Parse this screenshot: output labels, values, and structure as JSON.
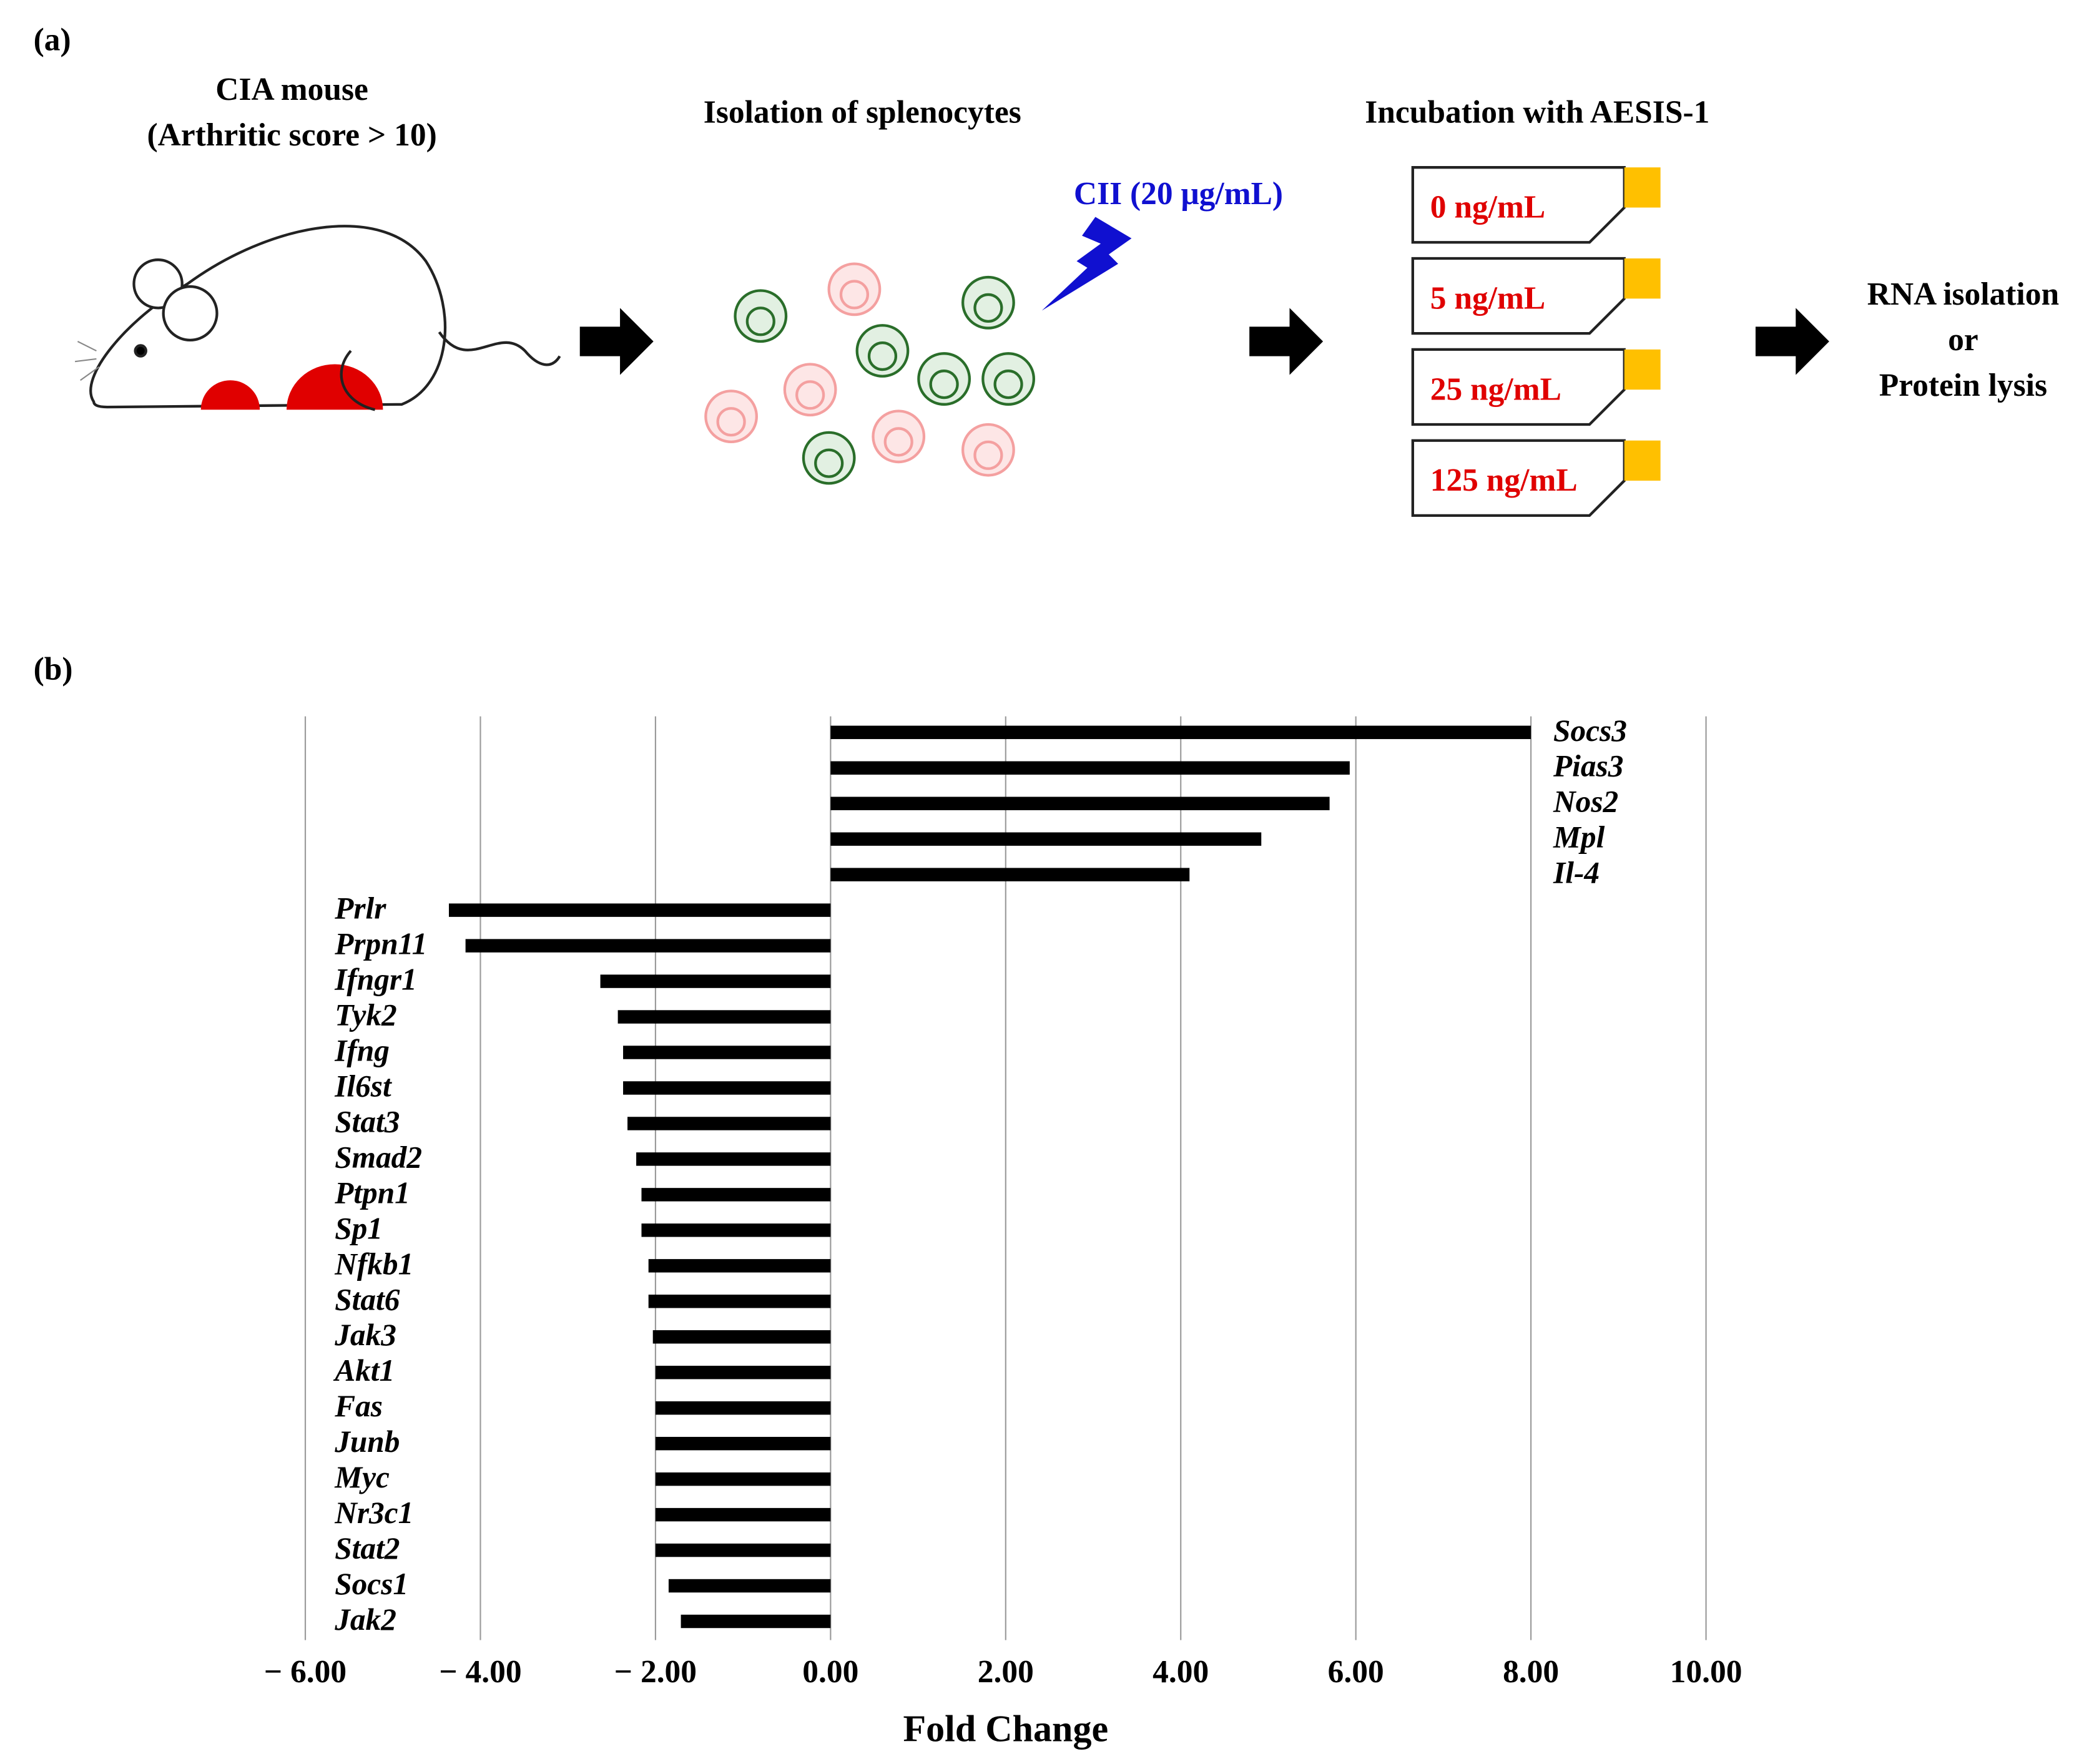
{
  "diagram": {
    "panel_a": "(a)",
    "mouse_title": "CIA mouse",
    "mouse_subtitle": "(Arthritic score > 10)",
    "cells_title": "Isolation of splenocytes",
    "stimulus": "CII (20 μg/mL)",
    "incubation_title": "Incubation with AESIS-1",
    "doses": [
      "0 ng/mL",
      "5 ng/mL",
      "25 ng/mL",
      "125 ng/mL"
    ],
    "output": [
      "RNA isolation",
      "or",
      "Protein lysis"
    ],
    "panel_b": "(b)"
  },
  "chart_data": {
    "type": "barh",
    "xlabel": "Fold Change",
    "categories": [
      "Socs3",
      "Pias3",
      "Nos2",
      "Mpl",
      "Il-4",
      "Prlr",
      "Prpn11",
      "Ifngr1",
      "Tyk2",
      "Ifng",
      "Il6st",
      "Stat3",
      "Smad2",
      "Ptpn1",
      "Sp1",
      "Nfkb1",
      "Stat6",
      "Jak3",
      "Akt1",
      "Fas",
      "Junb",
      "Myc",
      "Nr3c1",
      "Stat2",
      "Socs1",
      "Jak2"
    ],
    "values": [
      8.0,
      5.93,
      5.7,
      4.92,
      4.1,
      -4.36,
      -4.17,
      -2.63,
      -2.43,
      -2.37,
      -2.37,
      -2.32,
      -2.22,
      -2.16,
      -2.16,
      -2.08,
      -2.08,
      -2.03,
      -2.0,
      -2.0,
      -2.0,
      -2.0,
      -2.0,
      -2.0,
      -1.85,
      -1.71
    ],
    "color": "#000000",
    "xlim": [
      -6,
      10
    ],
    "xticks": [
      {
        "value": -6,
        "label": "− 6.00"
      },
      {
        "value": -4,
        "label": "− 4.00"
      },
      {
        "value": -2,
        "label": "− 2.00"
      },
      {
        "value": 0,
        "label": "0.00"
      },
      {
        "value": 2,
        "label": "2.00"
      },
      {
        "value": 4,
        "label": "4.00"
      },
      {
        "value": 6,
        "label": "6.00"
      },
      {
        "value": 8,
        "label": "8.00"
      },
      {
        "value": 10,
        "label": "10.00"
      }
    ],
    "grid": true
  }
}
